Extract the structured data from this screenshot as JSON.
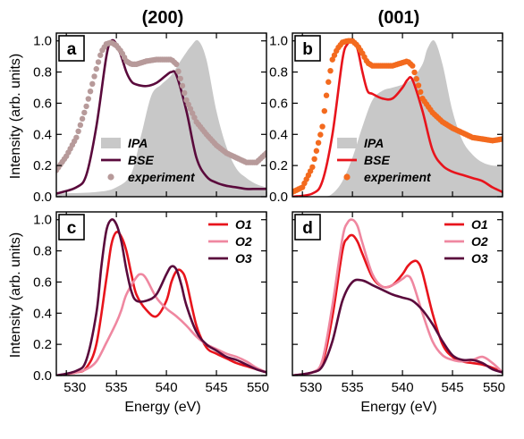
{
  "column_titles": [
    "(200)",
    "(001)"
  ],
  "xlabel": "Energy (eV)",
  "ylabel": "Intensity (arb. units)",
  "chart_data": [
    {
      "panel": "a",
      "type": "line",
      "xlim": [
        529,
        550
      ],
      "ylim": [
        0,
        1.05
      ],
      "xticks": [
        530,
        535,
        540,
        545,
        550
      ],
      "yticks": [
        0.0,
        0.2,
        0.4,
        0.6,
        0.8,
        1.0
      ],
      "ytick_labels": [
        "0.0",
        "0.2",
        "0.4",
        "0.6",
        "0.8",
        "1.0"
      ],
      "legend_position": "bottom-center",
      "series": [
        {
          "name": "IPA",
          "kind": "area",
          "color": "#c8c8c8",
          "x": [
            529,
            533,
            535,
            536.5,
            537.5,
            538.5,
            539.5,
            540.5,
            541.5,
            542.5,
            543.2,
            544,
            545,
            546,
            547,
            548,
            549,
            550
          ],
          "y": [
            0.02,
            0.03,
            0.06,
            0.15,
            0.4,
            0.65,
            0.72,
            0.78,
            0.88,
            0.97,
            1.0,
            0.88,
            0.55,
            0.32,
            0.18,
            0.12,
            0.08,
            0.06
          ]
        },
        {
          "name": "BSE",
          "kind": "line",
          "color": "#5a0a3c",
          "x": [
            529,
            531,
            532,
            533,
            534,
            534.5,
            535,
            535.5,
            536,
            536.5,
            537,
            538,
            539,
            540,
            540.5,
            541,
            542,
            543,
            544,
            545,
            546,
            547,
            548,
            549,
            550
          ],
          "y": [
            0.02,
            0.06,
            0.14,
            0.45,
            0.9,
            1.0,
            0.98,
            0.9,
            0.8,
            0.74,
            0.72,
            0.71,
            0.73,
            0.78,
            0.8,
            0.78,
            0.55,
            0.25,
            0.13,
            0.09,
            0.07,
            0.06,
            0.05,
            0.05,
            0.05
          ]
        },
        {
          "name": "experiment",
          "kind": "dots",
          "color": "#b79a9a",
          "x": [
            529,
            530,
            531,
            532,
            533,
            533.5,
            534,
            534.5,
            535,
            535.5,
            536,
            536.5,
            537,
            538,
            539,
            540,
            540.5,
            541,
            542,
            543,
            544,
            545,
            546,
            547,
            548,
            549,
            550
          ],
          "y": [
            0.17,
            0.26,
            0.38,
            0.58,
            0.82,
            0.93,
            0.98,
            0.99,
            0.97,
            0.93,
            0.87,
            0.85,
            0.85,
            0.87,
            0.88,
            0.88,
            0.88,
            0.85,
            0.62,
            0.48,
            0.4,
            0.33,
            0.28,
            0.25,
            0.22,
            0.22,
            0.28
          ]
        }
      ]
    },
    {
      "panel": "b",
      "type": "line",
      "xlim": [
        529,
        550
      ],
      "ylim": [
        0,
        1.05
      ],
      "xticks": [
        530,
        535,
        540,
        545,
        550
      ],
      "yticks": [
        0.0,
        0.2,
        0.4,
        0.6,
        0.8,
        1.0
      ],
      "ytick_labels": [
        "0.0",
        "0.2",
        "0.4",
        "0.6",
        "0.8",
        "1.0"
      ],
      "legend_position": "bottom-center",
      "series": [
        {
          "name": "IPA",
          "kind": "area",
          "color": "#c8c8c8",
          "x": [
            529,
            532,
            533,
            534,
            535,
            536,
            537,
            538,
            539,
            540,
            541,
            542,
            542.5,
            543.2,
            544,
            545,
            546,
            547,
            548,
            549,
            550
          ],
          "y": [
            0.0,
            0.0,
            0.02,
            0.1,
            0.25,
            0.45,
            0.62,
            0.68,
            0.7,
            0.72,
            0.76,
            0.85,
            0.95,
            1.0,
            0.85,
            0.55,
            0.36,
            0.27,
            0.22,
            0.2,
            0.2
          ]
        },
        {
          "name": "BSE",
          "kind": "line",
          "color": "#e8141c",
          "x": [
            529,
            531,
            532,
            533,
            534,
            534.5,
            535,
            535.5,
            536,
            536.5,
            537,
            538,
            539,
            540,
            540.5,
            541,
            542,
            543,
            544,
            545,
            546,
            547,
            548,
            549,
            550
          ],
          "y": [
            0.0,
            0.02,
            0.1,
            0.4,
            0.88,
            0.98,
            1.0,
            0.95,
            0.8,
            0.68,
            0.66,
            0.63,
            0.63,
            0.7,
            0.75,
            0.75,
            0.55,
            0.3,
            0.2,
            0.16,
            0.14,
            0.12,
            0.1,
            0.06,
            0.03
          ]
        },
        {
          "name": "experiment",
          "kind": "dots",
          "color": "#f36a1e",
          "x": [
            529,
            530,
            531,
            532,
            532.5,
            533,
            533.5,
            534,
            534.5,
            535,
            535.5,
            536,
            536.5,
            537,
            538,
            539,
            540,
            540.5,
            541,
            542,
            543,
            544,
            545,
            546,
            547,
            548,
            549,
            550
          ],
          "y": [
            0.03,
            0.06,
            0.19,
            0.45,
            0.7,
            0.88,
            0.95,
            0.99,
            1.0,
            1.0,
            0.97,
            0.92,
            0.86,
            0.84,
            0.84,
            0.84,
            0.86,
            0.87,
            0.84,
            0.63,
            0.54,
            0.48,
            0.44,
            0.41,
            0.38,
            0.37,
            0.36,
            0.37
          ]
        }
      ]
    },
    {
      "panel": "c",
      "type": "line",
      "xlim": [
        529,
        550
      ],
      "ylim": [
        0,
        1.05
      ],
      "xticks": [
        530,
        535,
        540,
        545,
        550
      ],
      "xtick_labels": [
        "530",
        "535",
        "540",
        "545",
        "550"
      ],
      "yticks": [
        0.0,
        0.2,
        0.4,
        0.6,
        0.8,
        1.0
      ],
      "ytick_labels": [
        "0.0",
        "0.2",
        "0.4",
        "0.6",
        "0.8",
        "1.0"
      ],
      "legend_position": "top-right",
      "series": [
        {
          "name": "O1",
          "kind": "line",
          "color": "#e8141c",
          "x": [
            529,
            531,
            532,
            533,
            534,
            534.5,
            535,
            535.5,
            536,
            536.5,
            537,
            538,
            539,
            540,
            540.5,
            541,
            541.5,
            542,
            543,
            544,
            545,
            546,
            547,
            548,
            549,
            550
          ],
          "y": [
            0.0,
            0.02,
            0.05,
            0.2,
            0.62,
            0.84,
            0.92,
            0.89,
            0.8,
            0.65,
            0.52,
            0.42,
            0.38,
            0.48,
            0.6,
            0.67,
            0.67,
            0.6,
            0.32,
            0.18,
            0.14,
            0.11,
            0.08,
            0.06,
            0.04,
            0.02
          ]
        },
        {
          "name": "O2",
          "kind": "line",
          "color": "#ef87a0",
          "x": [
            529,
            531,
            532,
            533,
            534,
            535,
            535.5,
            536,
            537,
            537.5,
            538,
            539,
            540,
            541,
            542,
            543,
            544,
            545,
            546,
            547,
            548,
            549,
            550
          ],
          "y": [
            0.0,
            0.02,
            0.04,
            0.09,
            0.21,
            0.34,
            0.42,
            0.52,
            0.63,
            0.65,
            0.62,
            0.5,
            0.43,
            0.38,
            0.32,
            0.25,
            0.2,
            0.17,
            0.14,
            0.12,
            0.09,
            0.05,
            0.02
          ]
        },
        {
          "name": "O3",
          "kind": "line",
          "color": "#5a0a3c",
          "x": [
            529,
            531,
            532,
            533,
            533.5,
            534,
            534.5,
            535,
            535.5,
            536,
            536.5,
            537,
            538,
            539,
            540,
            540.5,
            541,
            541.5,
            542,
            543,
            544,
            545,
            546,
            547,
            548,
            549,
            550
          ],
          "y": [
            0.0,
            0.03,
            0.1,
            0.4,
            0.7,
            0.93,
            1.0,
            0.97,
            0.86,
            0.68,
            0.54,
            0.48,
            0.48,
            0.52,
            0.65,
            0.7,
            0.68,
            0.58,
            0.45,
            0.28,
            0.2,
            0.16,
            0.12,
            0.1,
            0.07,
            0.04,
            0.02
          ]
        }
      ]
    },
    {
      "panel": "d",
      "type": "line",
      "xlim": [
        529,
        550
      ],
      "ylim": [
        0,
        1.05
      ],
      "xticks": [
        530,
        535,
        540,
        545,
        550
      ],
      "xtick_labels": [
        "530",
        "535",
        "540",
        "545",
        "550"
      ],
      "yticks": [
        0.0,
        0.2,
        0.4,
        0.6,
        0.8,
        1.0
      ],
      "legend_position": "top-right",
      "series": [
        {
          "name": "O1",
          "kind": "line",
          "color": "#e8141c",
          "x": [
            529,
            531,
            532,
            533,
            534,
            534.5,
            535,
            535.5,
            536,
            537,
            538,
            539,
            540,
            540.5,
            541,
            541.5,
            542,
            543,
            544,
            545,
            546,
            547,
            548,
            549,
            550
          ],
          "y": [
            0.0,
            0.02,
            0.08,
            0.38,
            0.8,
            0.88,
            0.9,
            0.86,
            0.78,
            0.63,
            0.57,
            0.58,
            0.65,
            0.7,
            0.73,
            0.73,
            0.66,
            0.4,
            0.2,
            0.12,
            0.09,
            0.08,
            0.07,
            0.05,
            0.02
          ]
        },
        {
          "name": "O2",
          "kind": "line",
          "color": "#ef87a0",
          "x": [
            529,
            531,
            532,
            533,
            534,
            534.5,
            535,
            535.5,
            536,
            537,
            538,
            539,
            540,
            540.5,
            541,
            542,
            543,
            544,
            545,
            546,
            547,
            548,
            549,
            550
          ],
          "y": [
            0.0,
            0.02,
            0.1,
            0.45,
            0.88,
            0.98,
            1.0,
            0.96,
            0.85,
            0.65,
            0.57,
            0.58,
            0.62,
            0.64,
            0.6,
            0.4,
            0.22,
            0.13,
            0.1,
            0.09,
            0.1,
            0.12,
            0.08,
            0.02
          ]
        },
        {
          "name": "O3",
          "kind": "line",
          "color": "#5a0a3c",
          "x": [
            529,
            531,
            532,
            533,
            534,
            535,
            536,
            537,
            538,
            539,
            540,
            541,
            542,
            543,
            544,
            545,
            546,
            547,
            548,
            549,
            550
          ],
          "y": [
            0.0,
            0.02,
            0.06,
            0.22,
            0.48,
            0.6,
            0.61,
            0.58,
            0.55,
            0.52,
            0.5,
            0.48,
            0.42,
            0.33,
            0.22,
            0.13,
            0.1,
            0.1,
            0.08,
            0.04,
            0.02
          ]
        }
      ]
    }
  ]
}
